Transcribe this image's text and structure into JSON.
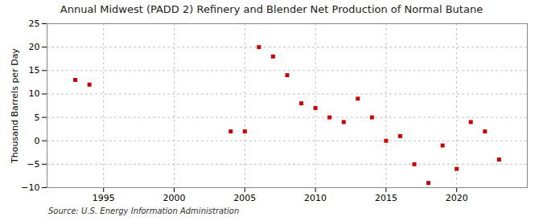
{
  "chart_data": {
    "type": "scatter",
    "title": "Annual Midwest (PADD 2) Refinery and Blender Net Production of Normal Butane",
    "ylabel": "Thousand Barrels per Day",
    "source": "Source: U.S. Energy Information Administration",
    "x": [
      1993,
      1994,
      2004,
      2005,
      2006,
      2007,
      2008,
      2009,
      2010,
      2011,
      2012,
      2013,
      2014,
      2015,
      2016,
      2017,
      2018,
      2019,
      2020,
      2021,
      2022,
      2023
    ],
    "values": [
      13,
      12,
      2,
      2,
      20,
      18,
      14,
      8,
      7,
      5,
      4,
      9,
      5,
      0,
      1,
      -5,
      -9,
      -1,
      -6,
      4,
      2,
      -4
    ],
    "color": "#cc0000",
    "marker": "square",
    "xlim": [
      1991,
      2025
    ],
    "ylim": [
      -10,
      25
    ],
    "xticks": [
      1995,
      2000,
      2005,
      2010,
      2015,
      2020
    ],
    "yticks": [
      -10,
      -5,
      0,
      5,
      10,
      15,
      20,
      25
    ],
    "grid": true
  }
}
